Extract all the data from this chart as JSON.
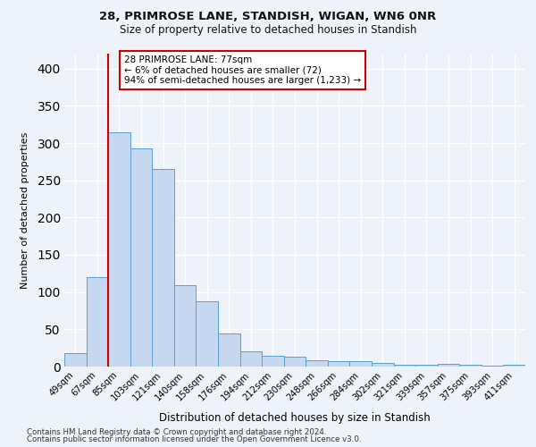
{
  "title1": "28, PRIMROSE LANE, STANDISH, WIGAN, WN6 0NR",
  "title2": "Size of property relative to detached houses in Standish",
  "xlabel": "Distribution of detached houses by size in Standish",
  "ylabel": "Number of detached properties",
  "categories": [
    "49sqm",
    "67sqm",
    "85sqm",
    "103sqm",
    "121sqm",
    "140sqm",
    "158sqm",
    "176sqm",
    "194sqm",
    "212sqm",
    "230sqm",
    "248sqm",
    "266sqm",
    "284sqm",
    "302sqm",
    "321sqm",
    "339sqm",
    "357sqm",
    "375sqm",
    "393sqm",
    "411sqm"
  ],
  "values": [
    18,
    120,
    315,
    293,
    265,
    109,
    88,
    45,
    20,
    15,
    13,
    8,
    7,
    7,
    5,
    3,
    2,
    4,
    3,
    1,
    3
  ],
  "bar_color": "#c5d8f0",
  "bar_edge_color": "#5a9fd4",
  "vline_color": "#cc0000",
  "annotation_text": "28 PRIMROSE LANE: 77sqm\n← 6% of detached houses are smaller (72)\n94% of semi-detached houses are larger (1,233) →",
  "annotation_box_color": "#ffffff",
  "annotation_box_edge_color": "#cc0000",
  "footnote1": "Contains HM Land Registry data © Crown copyright and database right 2024.",
  "footnote2": "Contains public sector information licensed under the Open Government Licence v3.0.",
  "bg_color": "#eef2f9",
  "ylim": [
    0,
    420
  ],
  "yticks": [
    0,
    50,
    100,
    150,
    200,
    250,
    300,
    350,
    400
  ],
  "grid_color": "#ffffff"
}
